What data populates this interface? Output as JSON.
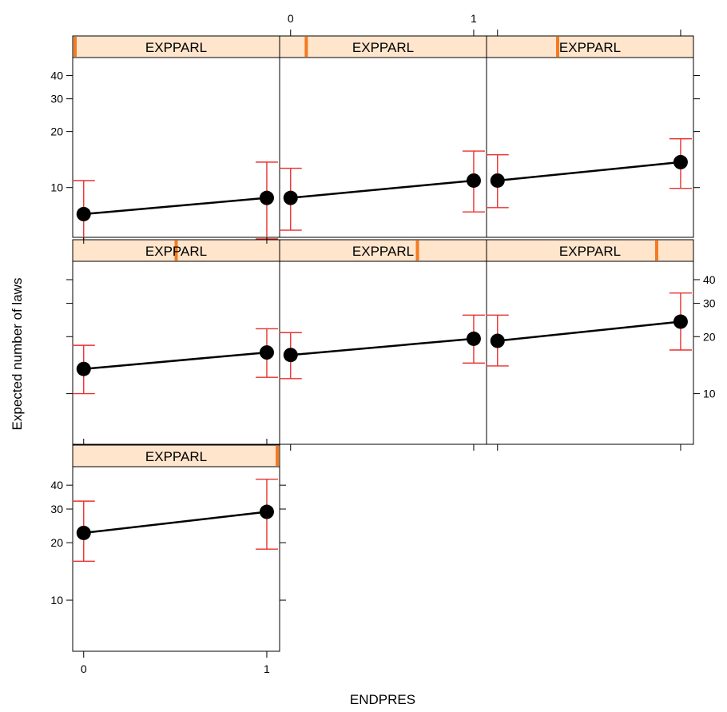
{
  "chart_data": {
    "type": "scatter",
    "layout": "effect-plot-panels",
    "xlabel": "ENDPRES",
    "ylabel": "Expected number of laws",
    "x_ticks": [
      "0",
      "1"
    ],
    "y_ticks": [
      10,
      20,
      30,
      40
    ],
    "y_scale": "log",
    "ylim": [
      5.4,
      50
    ],
    "xlim": [
      -0.06,
      1.07
    ],
    "grid": false,
    "colors": {
      "strip_fill": "#FFE5CC",
      "strip_indicator": "#F47B20",
      "error_bar": "#E8312F",
      "points": "#000000",
      "line": "#000000"
    },
    "panels": [
      {
        "strip_label": "EXPPARL",
        "strip_level": 0.0,
        "x": [
          0,
          1
        ],
        "y": [
          7.2,
          8.8
        ],
        "lower": [
          4.4,
          5.3
        ],
        "upper": [
          10.9,
          13.7
        ]
      },
      {
        "strip_label": "EXPPARL",
        "strip_level": 0.12,
        "x": [
          0,
          1
        ],
        "y": [
          8.8,
          10.9
        ],
        "lower": [
          5.9,
          7.4
        ],
        "upper": [
          12.7,
          15.7
        ]
      },
      {
        "strip_label": "EXPPARL",
        "strip_level": 0.34,
        "x": [
          0,
          1
        ],
        "y": [
          10.9,
          13.7
        ],
        "lower": [
          7.8,
          9.9
        ],
        "upper": [
          15.0,
          18.3
        ]
      },
      {
        "strip_label": "EXPPARL",
        "strip_level": 0.5,
        "x": [
          0,
          1
        ],
        "y": [
          13.5,
          16.5
        ],
        "lower": [
          10.0,
          12.2
        ],
        "upper": [
          18.0,
          22.0
        ]
      },
      {
        "strip_label": "EXPPARL",
        "strip_level": 0.67,
        "x": [
          0,
          1
        ],
        "y": [
          16.0,
          19.5
        ],
        "lower": [
          12.0,
          14.5
        ],
        "upper": [
          21.0,
          26.0
        ]
      },
      {
        "strip_label": "EXPPARL",
        "strip_level": 0.83,
        "x": [
          0,
          1
        ],
        "y": [
          19.0,
          24.0
        ],
        "lower": [
          14.0,
          17.0
        ],
        "upper": [
          26.0,
          34.0
        ]
      },
      {
        "strip_label": "EXPPARL",
        "strip_level": 1.0,
        "x": [
          0,
          1
        ],
        "y": [
          22.5,
          29.0
        ],
        "lower": [
          16.0,
          18.5
        ],
        "upper": [
          33.0,
          43.0
        ]
      }
    ]
  }
}
